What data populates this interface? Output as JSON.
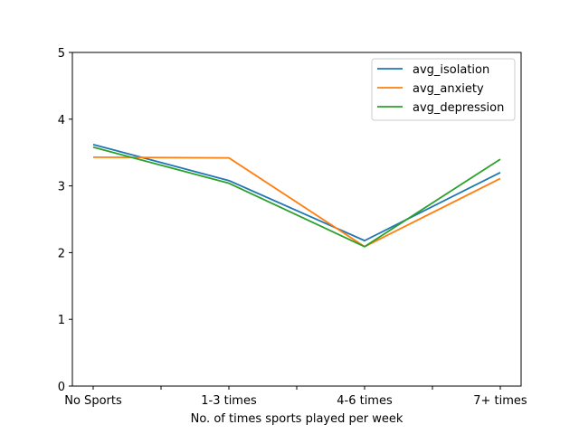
{
  "chart_data": {
    "type": "line",
    "categories": [
      "No Sports",
      "1-3 times",
      "4-6 times",
      "7+ times"
    ],
    "series": [
      {
        "name": "avg_isolation",
        "color": "#1f77b4",
        "values": [
          3.62,
          3.08,
          2.18,
          3.2
        ]
      },
      {
        "name": "avg_anxiety",
        "color": "#ff7f0e",
        "values": [
          3.43,
          3.42,
          2.09,
          3.11
        ]
      },
      {
        "name": "avg_depression",
        "color": "#2ca02c",
        "values": [
          3.58,
          3.04,
          2.09,
          3.4
        ]
      }
    ],
    "title": "",
    "xlabel": "No. of times sports played per week",
    "ylabel": "",
    "ylim": [
      0,
      5
    ],
    "yticks": [
      0,
      1,
      2,
      3,
      4,
      5
    ],
    "grid": false,
    "legend_position": "top-right"
  }
}
